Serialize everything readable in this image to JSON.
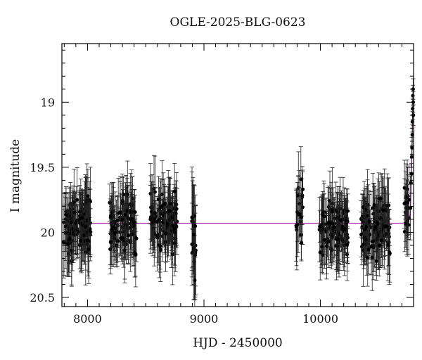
{
  "chart_data": {
    "type": "scatter",
    "title": "OGLE-2025-BLG-0623",
    "xlabel": "HJD - 2450000",
    "ylabel": "I magnitude",
    "xlim": [
      7780,
      10800
    ],
    "ylim": [
      20.57,
      18.55
    ],
    "y_inverted": true,
    "grid": false,
    "xticks": [
      {
        "value": 8000,
        "label": "8000"
      },
      {
        "value": 9000,
        "label": "9000"
      },
      {
        "value": 10000,
        "label": "10000"
      }
    ],
    "yticks": [
      {
        "value": 19,
        "label": "19"
      },
      {
        "value": 19.5,
        "label": "19.5"
      },
      {
        "value": 20,
        "label": "20"
      },
      {
        "value": 20.5,
        "label": "20.5"
      }
    ],
    "series": [
      {
        "kind": "points_with_errorbars",
        "color": "#000000",
        "seasons": [
          {
            "x_start": 7795,
            "x_end": 8030,
            "y_center": 19.95,
            "y_spread": 0.18,
            "err_typical": 0.2,
            "approx_points": 120
          },
          {
            "x_start": 8190,
            "x_end": 8420,
            "y_center": 19.95,
            "y_spread": 0.18,
            "err_typical": 0.2,
            "approx_points": 110
          },
          {
            "x_start": 8540,
            "x_end": 8770,
            "y_center": 19.92,
            "y_spread": 0.17,
            "err_typical": 0.2,
            "approx_points": 110
          },
          {
            "x_start": 8895,
            "x_end": 8935,
            "y_center": 20.05,
            "y_spread": 0.22,
            "err_typical": 0.28,
            "approx_points": 18
          },
          {
            "x_start": 9790,
            "x_end": 9850,
            "y_center": 19.85,
            "y_spread": 0.2,
            "err_typical": 0.22,
            "approx_points": 20
          },
          {
            "x_start": 9990,
            "x_end": 10240,
            "y_center": 19.95,
            "y_spread": 0.17,
            "err_typical": 0.2,
            "approx_points": 110
          },
          {
            "x_start": 10350,
            "x_end": 10600,
            "y_center": 19.97,
            "y_spread": 0.17,
            "err_typical": 0.2,
            "approx_points": 110
          },
          {
            "x_start": 10720,
            "x_end": 10775,
            "y_center": 19.8,
            "y_spread": 0.18,
            "err_typical": 0.2,
            "approx_points": 20
          }
        ],
        "rise": [
          {
            "x": 10778,
            "y": 19.62
          },
          {
            "x": 10782,
            "y": 19.55
          },
          {
            "x": 10785,
            "y": 19.42
          },
          {
            "x": 10787,
            "y": 19.35
          },
          {
            "x": 10789,
            "y": 19.25
          },
          {
            "x": 10790,
            "y": 19.15
          },
          {
            "x": 10792,
            "y": 19.05
          },
          {
            "x": 10794,
            "y": 18.95
          },
          {
            "x": 10796,
            "y": 18.9
          },
          {
            "x": 10797,
            "y": 19.0
          },
          {
            "x": 10798,
            "y": 19.1
          }
        ]
      },
      {
        "kind": "model_curve",
        "color": "#b031b0",
        "baseline": 19.93,
        "points": [
          {
            "x": 7780,
            "y": 19.93
          },
          {
            "x": 10700,
            "y": 19.93
          },
          {
            "x": 10750,
            "y": 19.92
          },
          {
            "x": 10765,
            "y": 19.9
          },
          {
            "x": 10772,
            "y": 19.85
          },
          {
            "x": 10777,
            "y": 19.7
          },
          {
            "x": 10781,
            "y": 19.55
          },
          {
            "x": 10785,
            "y": 19.4
          },
          {
            "x": 10788,
            "y": 19.28
          },
          {
            "x": 10791,
            "y": 19.15
          },
          {
            "x": 10794,
            "y": 19.05
          },
          {
            "x": 10797,
            "y": 19.0
          },
          {
            "x": 10800,
            "y": 18.98
          }
        ]
      }
    ]
  }
}
